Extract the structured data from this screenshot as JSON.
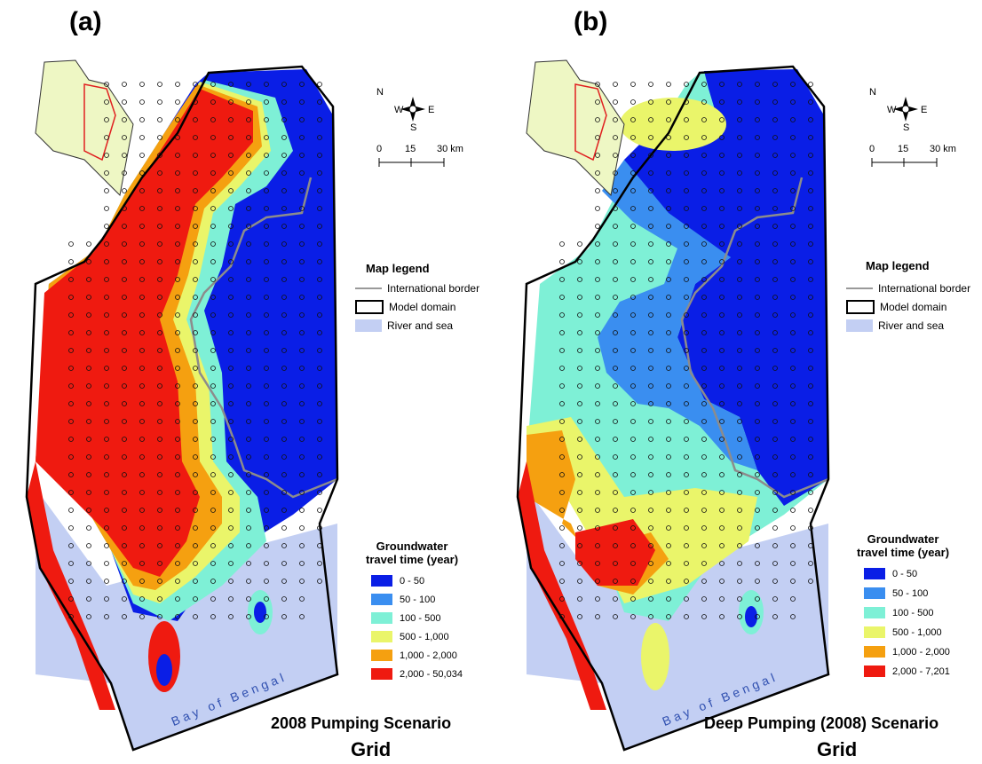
{
  "panels": [
    {
      "letter": "(a)",
      "scenario": "2008 Pumping Scenario",
      "grid_label": "Grid",
      "gw_legend_title_1": "Groundwater",
      "gw_legend_title_2": "travel time (year)",
      "gw_classes": [
        "0 - 50",
        "50 - 100",
        "100 - 500",
        "500 - 1,000",
        "1,000 - 2,000",
        "2,000 - 50,034"
      ]
    },
    {
      "letter": "(b)",
      "scenario": "Deep Pumping (2008) Scenario",
      "grid_label": "Grid",
      "gw_legend_title_1": "Groundwater",
      "gw_legend_title_2": "travel time (year)",
      "gw_classes": [
        "0 - 50",
        "50 - 100",
        "100 - 500",
        "500 - 1,000",
        "1,000 - 2,000",
        "2,000 - 7,201"
      ]
    }
  ],
  "map_legend": {
    "title": "Map legend",
    "items": [
      "International border",
      "Model domain",
      "River and sea"
    ]
  },
  "scale_bar": {
    "labels": [
      "0",
      "15",
      "30 km"
    ]
  },
  "compass": {
    "n": "N",
    "s": "S",
    "e": "E",
    "w": "W"
  },
  "sea_label": "Bay of Bengal",
  "colors": {
    "c0_50": "#0a1ee6",
    "c50_100": "#3a8ef0",
    "c100_500": "#7ef0d6",
    "c500_1000": "#eaf56a",
    "c1000_2000": "#f5a010",
    "c2000_max": "#ef1a10",
    "river_sea": "#c3cff3",
    "inset_land": "#eef7c4"
  }
}
